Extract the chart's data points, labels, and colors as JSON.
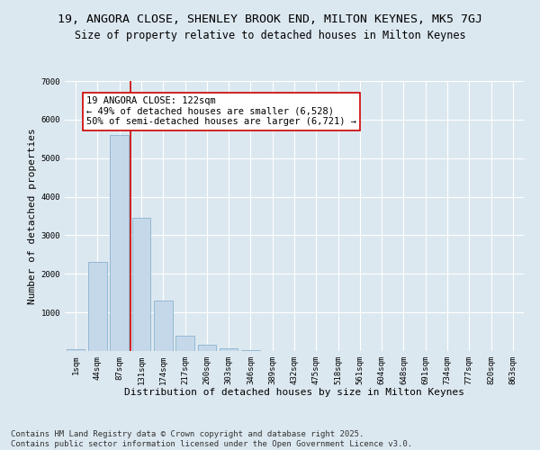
{
  "title_line1": "19, ANGORA CLOSE, SHENLEY BROOK END, MILTON KEYNES, MK5 7GJ",
  "title_line2": "Size of property relative to detached houses in Milton Keynes",
  "xlabel": "Distribution of detached houses by size in Milton Keynes",
  "ylabel": "Number of detached properties",
  "categories": [
    "1sqm",
    "44sqm",
    "87sqm",
    "131sqm",
    "174sqm",
    "217sqm",
    "260sqm",
    "303sqm",
    "346sqm",
    "389sqm",
    "432sqm",
    "475sqm",
    "518sqm",
    "561sqm",
    "604sqm",
    "648sqm",
    "691sqm",
    "734sqm",
    "777sqm",
    "820sqm",
    "863sqm"
  ],
  "values": [
    50,
    2300,
    5600,
    3450,
    1300,
    400,
    175,
    80,
    30,
    10,
    5,
    3,
    2,
    1,
    1,
    0,
    0,
    0,
    0,
    0,
    0
  ],
  "bar_color": "#c5d8ea",
  "bar_edge_color": "#7aaac8",
  "vline_color": "#cc0000",
  "vline_x_index": 2.5,
  "annotation_title": "19 ANGORA CLOSE: 122sqm",
  "annotation_line2": "← 49% of detached houses are smaller (6,528)",
  "annotation_line3": "50% of semi-detached houses are larger (6,721) →",
  "annotation_box_color": "#cc0000",
  "ylim": [
    0,
    7000
  ],
  "yticks": [
    0,
    1000,
    2000,
    3000,
    4000,
    5000,
    6000,
    7000
  ],
  "background_color": "#dce8f0",
  "plot_bg_color": "#dce8f0",
  "grid_color": "#ffffff",
  "footer_line1": "Contains HM Land Registry data © Crown copyright and database right 2025.",
  "footer_line2": "Contains public sector information licensed under the Open Government Licence v3.0.",
  "title_fontsize": 9.5,
  "subtitle_fontsize": 8.5,
  "axis_label_fontsize": 8,
  "tick_fontsize": 6.5,
  "annotation_fontsize": 7.5,
  "footer_fontsize": 6.5
}
